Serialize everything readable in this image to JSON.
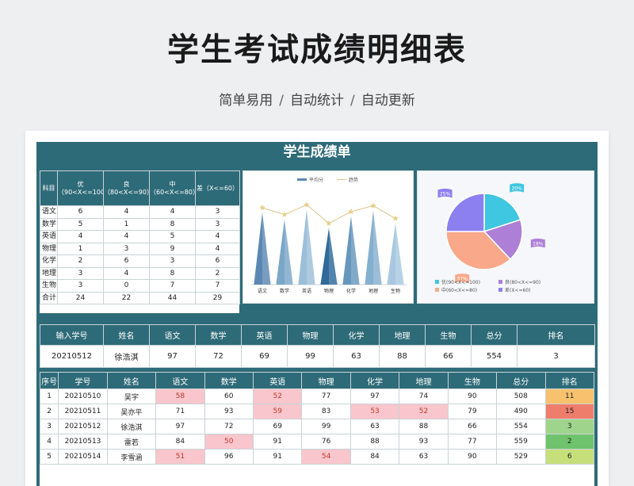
{
  "header": {
    "title": "学生考试成绩明细表",
    "subtitle_items": [
      "简单易用",
      "自动统计",
      "自动更新"
    ],
    "separator": "/"
  },
  "sheet": {
    "title": "学生成绩单"
  },
  "summary": {
    "headers": [
      "科目",
      "优\n（90<X<=100）",
      "良\n（80<X<=90）",
      "中\n（60<X<=80）",
      "差（X<=60）"
    ],
    "rows": [
      [
        "语文",
        "6",
        "4",
        "4",
        "3"
      ],
      [
        "数学",
        "5",
        "1",
        "8",
        "3"
      ],
      [
        "英语",
        "4",
        "4",
        "5",
        "4"
      ],
      [
        "物理",
        "1",
        "3",
        "9",
        "4"
      ],
      [
        "化学",
        "2",
        "6",
        "3",
        "6"
      ],
      [
        "地理",
        "3",
        "4",
        "8",
        "2"
      ],
      [
        "生物",
        "3",
        "0",
        "7",
        "7"
      ],
      [
        "合计",
        "24",
        "22",
        "44",
        "29"
      ]
    ]
  },
  "chart_data": [
    {
      "type": "bar",
      "legend": [
        "平均分",
        "趋势"
      ],
      "categories": [
        "语文",
        "数学",
        "英语",
        "物理",
        "化学",
        "地理",
        "生物"
      ],
      "series": [
        {
          "name": "平均分",
          "values": [
            74,
            67,
            77,
            58,
            70,
            76,
            63
          ]
        },
        {
          "name": "趋势",
          "values": [
            74,
            67,
            77,
            58,
            70,
            76,
            63
          ]
        }
      ],
      "colors": [
        "#5b88b3",
        "#7aa7c7",
        "#9bbfd8",
        "#2f6a9a",
        "#6797bd",
        "#85afcf",
        "#a9c8e0"
      ]
    },
    {
      "type": "pie",
      "labels": [
        "优(90<X<=100)",
        "良(80<X<=90)",
        "中(60<X<=80)",
        "差(X<=60)"
      ],
      "values": [
        20,
        18,
        37,
        25
      ],
      "value_labels": [
        "20%",
        "18%",
        "37%",
        "25%"
      ],
      "colors": [
        "#3fc6e0",
        "#ad7fd6",
        "#f9a98a",
        "#8c7ff0"
      ]
    }
  ],
  "lookup": {
    "headers": [
      "输入学号",
      "姓名",
      "语文",
      "数学",
      "英语",
      "物理",
      "化学",
      "地理",
      "生物",
      "总分",
      "排名"
    ],
    "row": [
      "20210512",
      "徐浩淇",
      "97",
      "72",
      "69",
      "99",
      "63",
      "88",
      "66",
      "554",
      "3"
    ]
  },
  "detail": {
    "headers": [
      "序号",
      "学号",
      "姓名",
      "语文",
      "数学",
      "英语",
      "物理",
      "化学",
      "地理",
      "生物",
      "总分",
      "排名"
    ],
    "rows": [
      [
        "1",
        "20210510",
        "吴宇",
        "58",
        "60",
        "52",
        "77",
        "97",
        "74",
        "90",
        "508",
        "11"
      ],
      [
        "2",
        "20210511",
        "吴亦平",
        "71",
        "93",
        "59",
        "83",
        "53",
        "52",
        "79",
        "490",
        "15"
      ],
      [
        "3",
        "20210512",
        "徐浩淇",
        "97",
        "72",
        "69",
        "99",
        "63",
        "88",
        "66",
        "554",
        "3"
      ],
      [
        "4",
        "20210513",
        "雷若",
        "84",
        "50",
        "91",
        "76",
        "88",
        "93",
        "77",
        "559",
        "2"
      ],
      [
        "5",
        "20210514",
        "李雪涵",
        "51",
        "96",
        "91",
        "54",
        "84",
        "63",
        "90",
        "529",
        "6"
      ]
    ]
  }
}
